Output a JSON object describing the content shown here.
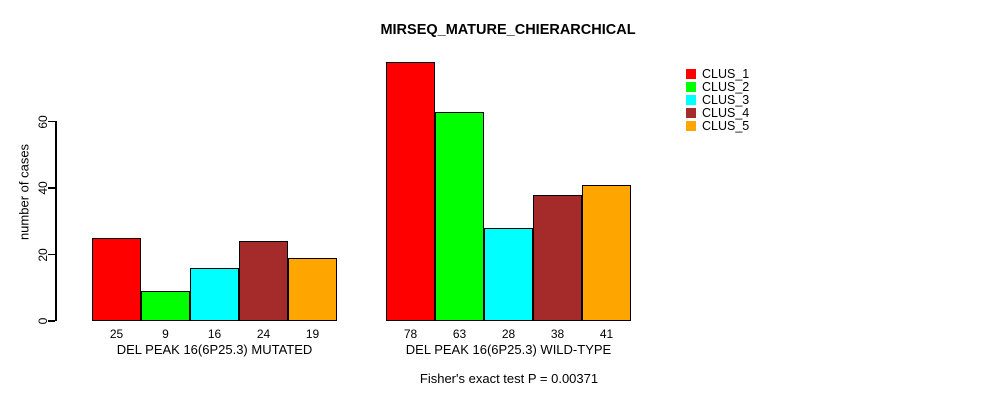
{
  "chart_data": {
    "type": "bar",
    "title": "MIRSEQ_MATURE_CHIERARCHICAL",
    "ylabel": "number of cases",
    "xlabel": "",
    "yticks": [
      0,
      20,
      40,
      60
    ],
    "ylim": [
      0,
      78
    ],
    "grid": false,
    "legend_position": "top-right",
    "bar_value_labels": true,
    "caption": "Fisher's exact test P = 0.00371",
    "categories": [
      "DEL PEAK 16(6P25.3) MUTATED",
      "DEL PEAK 16(6P25.3) WILD-TYPE"
    ],
    "series": [
      {
        "name": "CLUS_1",
        "color": "#ff0000",
        "values": [
          25,
          78
        ]
      },
      {
        "name": "CLUS_2",
        "color": "#00ff00",
        "values": [
          9,
          63
        ]
      },
      {
        "name": "CLUS_3",
        "color": "#00ffff",
        "values": [
          16,
          28
        ]
      },
      {
        "name": "CLUS_4",
        "color": "#a52a2a",
        "values": [
          24,
          38
        ]
      },
      {
        "name": "CLUS_5",
        "color": "#ffa500",
        "values": [
          19,
          41
        ]
      }
    ]
  }
}
